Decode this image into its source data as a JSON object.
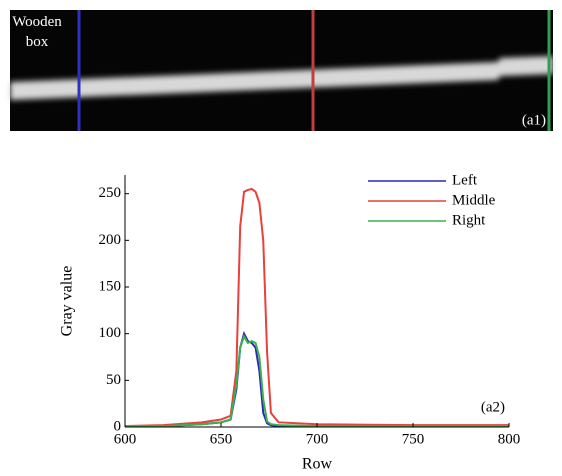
{
  "figure": {
    "label": "Wooden box",
    "tag": "(a1)"
  },
  "chart_data": {
    "type": "line",
    "annotation": "(a2)",
    "x_label": "Row",
    "y_label": "Gray value",
    "x": [
      600,
      620,
      640,
      650,
      655,
      658,
      660,
      662,
      664,
      666,
      668,
      670,
      672,
      674,
      676,
      680,
      700,
      750,
      800
    ],
    "series": [
      {
        "name": "Left",
        "color": "#2a2ab8",
        "values": [
          1,
          1,
          3,
          5,
          8,
          40,
          85,
          100,
          92,
          90,
          85,
          60,
          15,
          4,
          2,
          1,
          1,
          1,
          1
        ]
      },
      {
        "name": "Middle",
        "color": "#e8403a",
        "values": [
          1,
          2,
          5,
          8,
          12,
          60,
          215,
          252,
          254,
          255,
          252,
          240,
          200,
          80,
          15,
          5,
          3,
          2,
          2
        ]
      },
      {
        "name": "Right",
        "color": "#3cb050",
        "values": [
          1,
          1,
          3,
          5,
          8,
          45,
          85,
          97,
          90,
          92,
          90,
          75,
          30,
          6,
          3,
          2,
          1,
          1,
          1
        ]
      }
    ],
    "xlim": [
      600,
      800
    ],
    "xticks": [
      600,
      650,
      700,
      750,
      800
    ],
    "ylim": [
      0,
      270
    ],
    "yticks": [
      0,
      50,
      100,
      150,
      200,
      250
    ],
    "legend": "upper-right"
  }
}
